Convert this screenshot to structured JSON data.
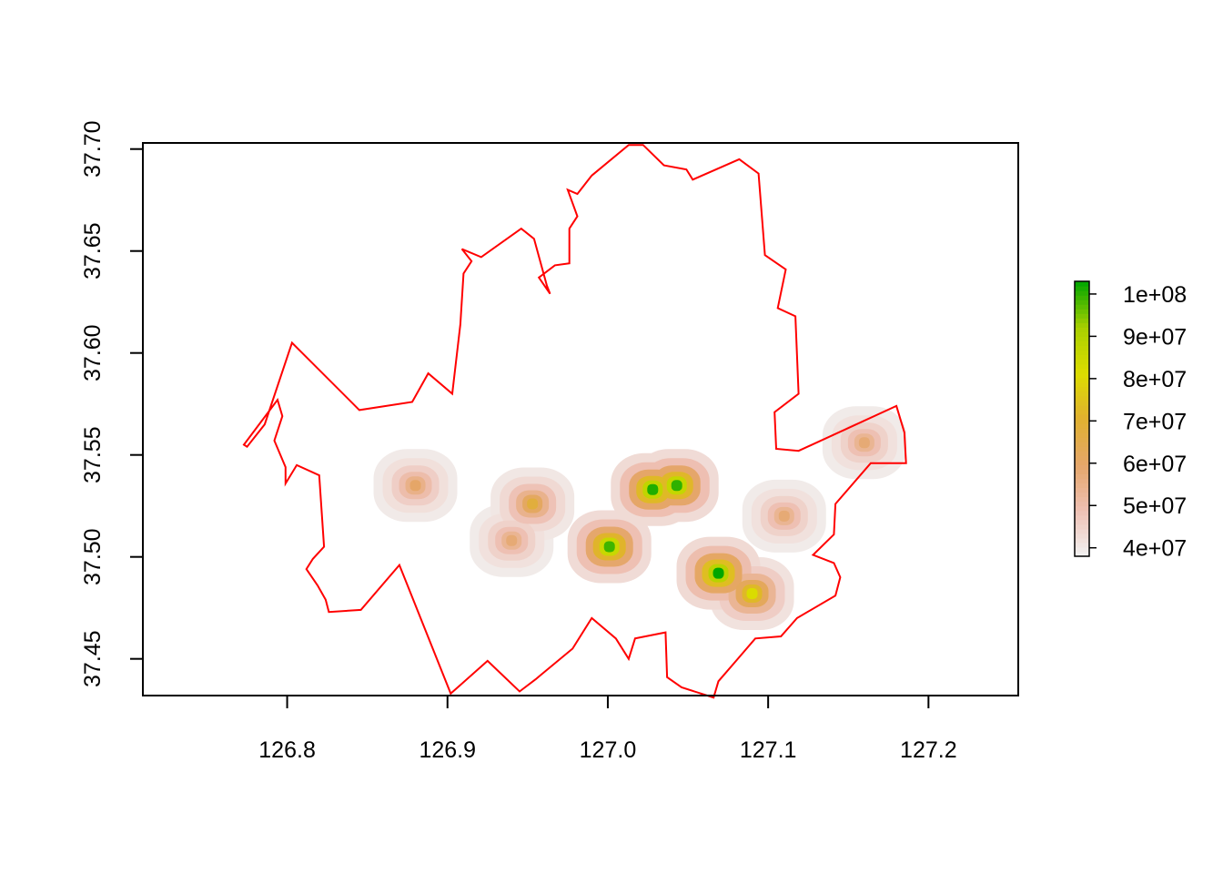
{
  "chart_data": {
    "type": "heatmap",
    "title": "",
    "xlabel": "",
    "ylabel": "",
    "xlim": [
      126.71,
      127.256
    ],
    "ylim": [
      37.432,
      37.703
    ],
    "x_ticks": [
      "126.8",
      "126.9",
      "127.0",
      "127.1",
      "127.2"
    ],
    "y_ticks": [
      "37.45",
      "37.50",
      "37.55",
      "37.60",
      "37.65",
      "37.70"
    ],
    "boundary_color": "#ff0000",
    "boundary": [
      [
        126.99,
        37.687
      ],
      [
        127.013,
        37.702
      ],
      [
        127.022,
        37.702
      ],
      [
        127.035,
        37.692
      ],
      [
        127.049,
        37.69
      ],
      [
        127.053,
        37.685
      ],
      [
        127.082,
        37.695
      ],
      [
        127.094,
        37.688
      ],
      [
        127.098,
        37.648
      ],
      [
        127.111,
        37.641
      ],
      [
        127.106,
        37.622
      ],
      [
        127.117,
        37.618
      ],
      [
        127.119,
        37.58
      ],
      [
        127.104,
        37.571
      ],
      [
        127.105,
        37.553
      ],
      [
        127.119,
        37.552
      ],
      [
        127.18,
        37.574
      ],
      [
        127.185,
        37.561
      ],
      [
        127.186,
        37.546
      ],
      [
        127.164,
        37.546
      ],
      [
        127.142,
        37.526
      ],
      [
        127.141,
        37.511
      ],
      [
        127.128,
        37.501
      ],
      [
        127.141,
        37.497
      ],
      [
        127.145,
        37.49
      ],
      [
        127.142,
        37.481
      ],
      [
        127.118,
        37.47
      ],
      [
        127.108,
        37.461
      ],
      [
        127.092,
        37.46
      ],
      [
        127.08,
        37.449
      ],
      [
        127.069,
        37.439
      ],
      [
        127.066,
        37.431
      ],
      [
        127.046,
        37.436
      ],
      [
        127.037,
        37.441
      ],
      [
        127.036,
        37.463
      ],
      [
        127.017,
        37.46
      ],
      [
        127.013,
        37.45
      ],
      [
        127.005,
        37.46
      ],
      [
        126.99,
        37.47
      ],
      [
        126.978,
        37.455
      ],
      [
        126.958,
        37.442
      ],
      [
        126.955,
        37.44
      ],
      [
        126.945,
        37.434
      ],
      [
        126.925,
        37.449
      ],
      [
        126.902,
        37.433
      ],
      [
        126.87,
        37.496
      ],
      [
        126.846,
        37.474
      ],
      [
        126.826,
        37.473
      ],
      [
        126.824,
        37.479
      ],
      [
        126.819,
        37.486
      ],
      [
        126.812,
        37.494
      ],
      [
        126.816,
        37.499
      ],
      [
        126.823,
        37.505
      ],
      [
        126.82,
        37.54
      ],
      [
        126.806,
        37.545
      ],
      [
        126.799,
        37.536
      ],
      [
        126.799,
        37.544
      ],
      [
        126.792,
        37.557
      ],
      [
        126.797,
        37.569
      ],
      [
        126.794,
        37.577
      ],
      [
        126.773,
        37.555
      ],
      [
        126.775,
        37.554
      ],
      [
        126.786,
        37.565
      ],
      [
        126.803,
        37.605
      ],
      [
        126.845,
        37.572
      ],
      [
        126.878,
        37.576
      ],
      [
        126.888,
        37.59
      ],
      [
        126.903,
        37.58
      ],
      [
        126.908,
        37.614
      ],
      [
        126.91,
        37.639
      ],
      [
        126.915,
        37.645
      ],
      [
        126.909,
        37.651
      ],
      [
        126.921,
        37.647
      ],
      [
        126.946,
        37.661
      ],
      [
        126.954,
        37.656
      ],
      [
        126.962,
        37.633
      ],
      [
        126.964,
        37.629
      ],
      [
        126.957,
        37.637
      ],
      [
        126.967,
        37.643
      ],
      [
        126.976,
        37.644
      ],
      [
        126.976,
        37.661
      ],
      [
        126.981,
        37.667
      ],
      [
        126.975,
        37.68
      ],
      [
        126.981,
        37.678
      ],
      [
        126.99,
        37.687
      ]
    ],
    "colorbar": {
      "ticks": [
        "4e+07",
        "5e+07",
        "6e+07",
        "7e+07",
        "8e+07",
        "9e+07",
        "1e+08"
      ],
      "min": 38000000,
      "max": 103000000,
      "colors": [
        "#f2f2f2",
        "#eec0b4",
        "#e5a66a",
        "#e0b030",
        "#dddd00",
        "#a8cf00",
        "#00a600"
      ]
    },
    "hotspots": [
      {
        "x": 127.028,
        "y": 37.533,
        "value": 101000000
      },
      {
        "x": 127.043,
        "y": 37.535,
        "value": 100000000
      },
      {
        "x": 127.069,
        "y": 37.492,
        "value": 103000000
      },
      {
        "x": 127.001,
        "y": 37.505,
        "value": 99000000
      },
      {
        "x": 126.953,
        "y": 37.526,
        "value": 68000000
      },
      {
        "x": 126.88,
        "y": 37.535,
        "value": 60000000
      },
      {
        "x": 126.94,
        "y": 37.508,
        "value": 58000000
      },
      {
        "x": 127.09,
        "y": 37.482,
        "value": 82000000
      },
      {
        "x": 127.16,
        "y": 37.556,
        "value": 58000000
      },
      {
        "x": 127.11,
        "y": 37.52,
        "value": 58000000
      }
    ]
  }
}
